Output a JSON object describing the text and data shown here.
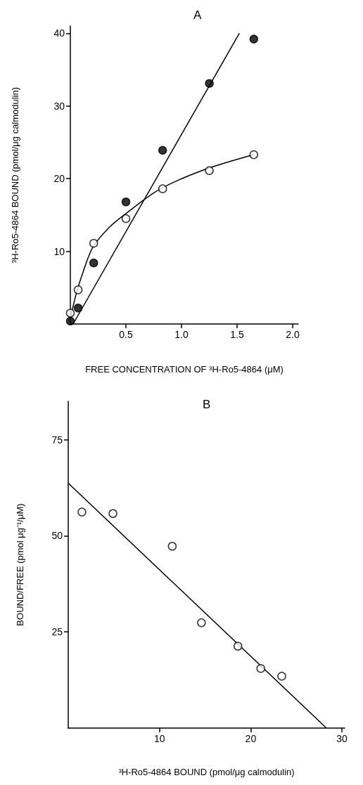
{
  "chart_data": [
    {
      "type": "scatter",
      "title": "A",
      "xlabel": "FREE CONCENTRATION OF ³H-Ro5-4864 (μM)",
      "ylabel": "³H-Ro5-4864 BOUND (pmol/μg calmodulin)",
      "xlim": [
        0,
        2.05
      ],
      "ylim": [
        0,
        41
      ],
      "xticks": [
        0.5,
        {
          "value": 1,
          "label": "1.0"
        },
        1.5,
        {
          "value": 2,
          "label": "2.0"
        }
      ],
      "yticks": [
        10,
        20,
        30,
        40
      ],
      "marker": "circle",
      "series": [
        {
          "color": "#000000",
          "x": [
            0.0,
            0.07,
            0.21,
            0.5,
            0.83,
            1.25,
            1.65
          ],
          "values": [
            0.4,
            2.2,
            8.4,
            16.8,
            23.9,
            33.1,
            39.2
          ]
        },
        {
          "color": "#ffffff",
          "x": [
            0.0,
            0.07,
            0.21,
            0.5,
            0.83,
            1.25,
            1.65
          ],
          "values": [
            1.5,
            4.7,
            11.1,
            14.5,
            18.6,
            21.1,
            23.3
          ]
        },
        {
          "type": "line",
          "color": "#000000",
          "marker": "none",
          "x": [
            0.025,
            1.52
          ],
          "values": [
            0,
            40
          ]
        },
        {
          "type": "line",
          "color": "#000000",
          "marker": "none",
          "x": [
            0.0,
            0.05,
            0.1,
            0.2,
            0.35,
            0.5,
            0.8,
            1.2,
            1.65
          ],
          "values": [
            0.8,
            4,
            6.5,
            10.5,
            13.3,
            15.2,
            18.5,
            21.2,
            23.3
          ]
        }
      ]
    },
    {
      "type": "scatter",
      "title": "B",
      "xlabel": "³H-Ro5-4864 BOUND (pmol/μg calmodulin)",
      "ylabel": "BOUND/FREE (pmol μg⁻¹/μM)",
      "xlim": [
        0,
        30.3
      ],
      "ylim": [
        0,
        85
      ],
      "xticks": [
        10,
        20,
        30
      ],
      "yticks": [
        25,
        50,
        75
      ],
      "marker": "circle",
      "series": [
        {
          "color": "#ffffff",
          "x": [
            1.5,
            4.9,
            11.4,
            14.6,
            18.6,
            21.1,
            23.4
          ],
          "values": [
            56.2,
            55.8,
            47.3,
            27.4,
            21.3,
            15.5,
            13.5
          ]
        },
        {
          "type": "line",
          "color": "#000000",
          "marker": "none",
          "x": [
            0,
            28.3
          ],
          "values": [
            63.7,
            0
          ]
        }
      ]
    }
  ]
}
